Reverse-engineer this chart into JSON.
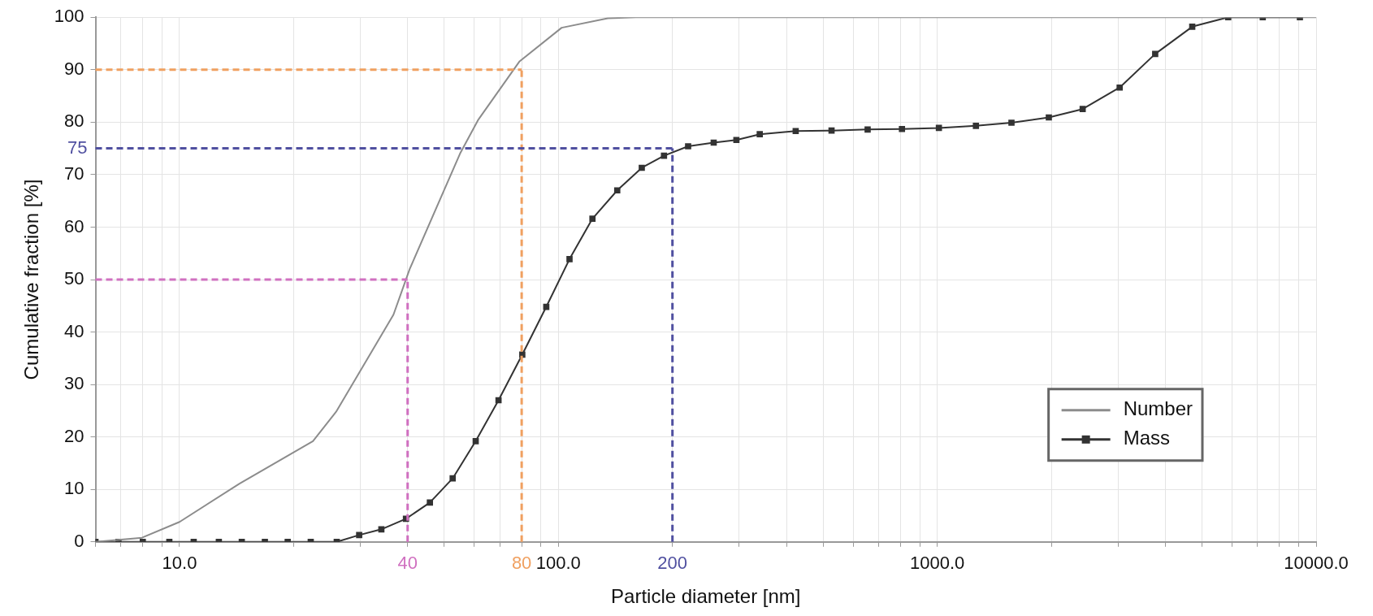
{
  "chart_data": {
    "type": "line",
    "xlabel": "Particle diameter [nm]",
    "ylabel": "Cumulative fraction [%]",
    "log": "x",
    "xlim": [
      6,
      10000
    ],
    "ylim": [
      0,
      100
    ],
    "xticks": [
      {
        "value": 6,
        "label": null
      },
      {
        "value": 7,
        "label": null
      },
      {
        "value": 8,
        "label": null
      },
      {
        "value": 9,
        "label": null
      },
      {
        "value": 10,
        "label": "10.0"
      },
      {
        "value": 20,
        "label": null
      },
      {
        "value": 30,
        "label": null
      },
      {
        "value": 40,
        "label": null
      },
      {
        "value": 50,
        "label": null
      },
      {
        "value": 60,
        "label": null
      },
      {
        "value": 70,
        "label": null
      },
      {
        "value": 80,
        "label": null
      },
      {
        "value": 90,
        "label": null
      },
      {
        "value": 100,
        "label": "100.0"
      },
      {
        "value": 200,
        "label": null
      },
      {
        "value": 300,
        "label": null
      },
      {
        "value": 400,
        "label": null
      },
      {
        "value": 500,
        "label": null
      },
      {
        "value": 600,
        "label": null
      },
      {
        "value": 700,
        "label": null
      },
      {
        "value": 800,
        "label": null
      },
      {
        "value": 900,
        "label": null
      },
      {
        "value": 1000,
        "label": "1000.0"
      },
      {
        "value": 2000,
        "label": null
      },
      {
        "value": 3000,
        "label": null
      },
      {
        "value": 4000,
        "label": null
      },
      {
        "value": 5000,
        "label": null
      },
      {
        "value": 6000,
        "label": null
      },
      {
        "value": 7000,
        "label": null
      },
      {
        "value": 8000,
        "label": null
      },
      {
        "value": 9000,
        "label": null
      },
      {
        "value": 10000,
        "label": "10000.0"
      }
    ],
    "yticks": [
      0,
      10,
      20,
      30,
      40,
      50,
      60,
      70,
      80,
      90,
      100
    ],
    "grid": true,
    "legend": "bottom right",
    "series": [
      {
        "name": "Number",
        "color": "#8c8c8c",
        "marker": "none",
        "x": [
          6,
          7.96,
          10,
          14.4,
          22.5,
          25.9,
          30.7,
          36.7,
          40.5,
          55,
          61.5,
          79,
          102,
          135,
          160,
          10000
        ],
        "values": [
          0,
          0.8,
          3.8,
          11.1,
          19.2,
          24.8,
          33.8,
          43.3,
          52,
          74,
          80.5,
          91.6,
          98,
          99.8,
          100,
          100
        ]
      },
      {
        "name": "Mass",
        "color": "#333333",
        "marker": "square",
        "x": [
          6,
          6.9,
          8,
          9.4,
          10.9,
          12.7,
          14.6,
          16.8,
          19.3,
          22.2,
          26,
          29.8,
          34.1,
          39.6,
          45.8,
          52.6,
          60.5,
          69.5,
          80.3,
          92.9,
          107,
          123,
          143,
          166,
          190,
          220,
          257,
          295,
          340,
          423,
          526,
          655,
          807,
          1010,
          1265,
          1570,
          1970,
          2420,
          3030,
          3760,
          4710,
          5860,
          7230,
          9060
        ],
        "values": [
          0,
          0,
          0,
          0,
          0,
          0,
          0,
          0,
          0,
          0,
          0,
          1.3,
          2.4,
          4.4,
          7.5,
          12.1,
          19.2,
          27,
          35.7,
          44.8,
          53.9,
          61.6,
          67,
          71.3,
          73.6,
          75.4,
          76.1,
          76.6,
          77.7,
          78.3,
          78.4,
          78.6,
          78.7,
          78.9,
          79.3,
          79.9,
          80.9,
          82.5,
          86.6,
          93,
          98.2,
          100,
          100,
          100
        ]
      }
    ],
    "ref_lines": [
      {
        "axis": "x",
        "value": 40,
        "label": "40",
        "color": "#d070c0",
        "line_style": "dashed"
      },
      {
        "axis": "x",
        "value": 80,
        "label": "80",
        "color": "#f0a060",
        "line_style": "dashed"
      },
      {
        "axis": "x",
        "value": 200,
        "label": "200",
        "color": "#5050a0",
        "line_style": "dashed"
      },
      {
        "axis": "y",
        "value": 50,
        "label": null,
        "color": "#d070c0",
        "line_style": "dashed"
      },
      {
        "axis": "y",
        "value": 90,
        "label": null,
        "color": "#f0a060",
        "line_style": "dashed"
      },
      {
        "axis": "y",
        "value": 75,
        "label": "75",
        "color": "#5050a0",
        "line_style": "dashed"
      }
    ]
  }
}
